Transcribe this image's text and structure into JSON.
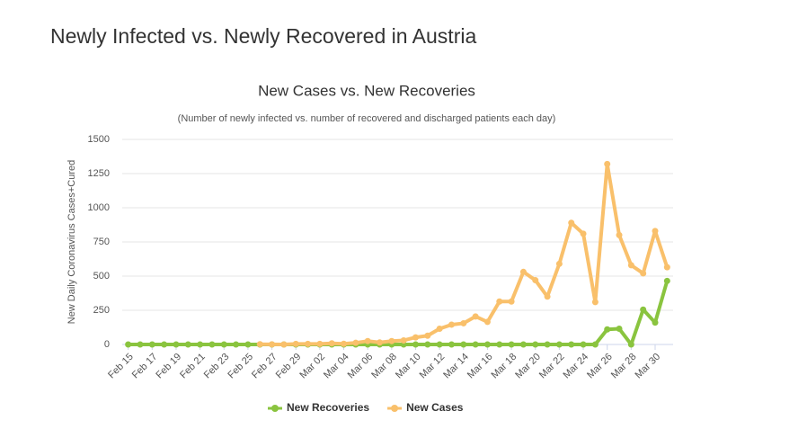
{
  "page_title": "Newly Infected vs. Newly Recovered in Austria",
  "chart_data": {
    "type": "line",
    "title": "New Cases vs. New Recoveries",
    "subtitle": "(Number of newly infected vs. number of recovered and discharged patients each day)",
    "y_label": "New Daily Coronavirus Cases+Cured",
    "categories": [
      "Feb 15",
      null,
      "Feb 17",
      null,
      "Feb 19",
      null,
      "Feb 21",
      null,
      "Feb 23",
      null,
      "Feb 25",
      null,
      "Feb 27",
      null,
      "Feb 29",
      null,
      "Mar 02",
      null,
      "Mar 04",
      null,
      "Mar 06",
      null,
      "Mar 08",
      null,
      "Mar 10",
      null,
      "Mar 12",
      null,
      "Mar 14",
      null,
      "Mar 16",
      null,
      "Mar 18",
      null,
      "Mar 20",
      null,
      "Mar 22",
      null,
      "Mar 24",
      null,
      "Mar 26",
      null,
      "Mar 28",
      null,
      "Mar 30",
      null
    ],
    "series": [
      {
        "name": "New Recoveries",
        "color": "#8ac43f",
        "values": [
          0,
          0,
          0,
          0,
          0,
          0,
          0,
          0,
          0,
          0,
          0,
          0,
          0,
          0,
          0,
          0,
          0,
          0,
          0,
          0,
          0,
          0,
          0,
          0,
          0,
          0,
          0,
          0,
          0,
          0,
          0,
          0,
          0,
          0,
          0,
          0,
          0,
          0,
          0,
          0,
          110,
          115,
          0,
          255,
          160,
          465
        ]
      },
      {
        "name": "New Cases",
        "color": "#f9c06b",
        "values": [
          null,
          null,
          null,
          null,
          null,
          null,
          null,
          null,
          null,
          null,
          null,
          2,
          1,
          0,
          4,
          4,
          4,
          8,
          5,
          12,
          25,
          15,
          25,
          30,
          52,
          64,
          115,
          145,
          155,
          205,
          165,
          314,
          314,
          531,
          470,
          350,
          590,
          890,
          810,
          310,
          1320,
          800,
          580,
          520,
          830,
          565
        ]
      }
    ],
    "ylim": [
      0,
      1500
    ],
    "yticks": [
      0,
      250,
      500,
      750,
      1000,
      1250,
      1500
    ],
    "grid": true,
    "legend": "bottom"
  }
}
